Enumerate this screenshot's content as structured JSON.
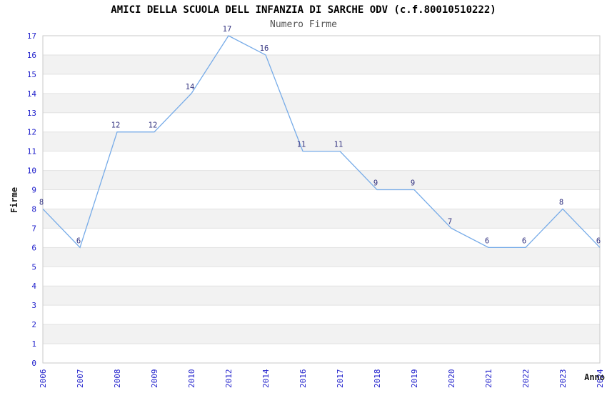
{
  "title": "AMICI DELLA SCUOLA DELL INFANZIA DI SARCHE ODV (c.f.80010510222)",
  "subtitle": "Numero Firme",
  "chart_data": {
    "type": "line",
    "categories": [
      "2006",
      "2007",
      "2008",
      "2009",
      "2010",
      "2012",
      "2014",
      "2016",
      "2017",
      "2018",
      "2019",
      "2020",
      "2021",
      "2022",
      "2023",
      "2024"
    ],
    "values": [
      8,
      6,
      12,
      12,
      14,
      17,
      16,
      11,
      11,
      9,
      9,
      7,
      6,
      6,
      8,
      6
    ],
    "title": "AMICI DELLA SCUOLA DELL INFANZIA DI SARCHE ODV (c.f.80010510222)",
    "subtitle": "Numero Firme",
    "xlabel": "Anno",
    "ylabel": "Firme",
    "ylim": [
      0,
      17
    ],
    "ytick_step": 1,
    "grid": "horizontal",
    "legend": "none",
    "colors": {
      "line": "#76abe8",
      "point_label": "#333380",
      "tick_label": "#2222cc",
      "band_fill": "#f2f2f2",
      "gridline": "#e2e2e2",
      "plot_border": "#c9c9c9",
      "title": "#000000",
      "subtitle": "#555555",
      "axis_title": "#1a1a1a",
      "background": "#ffffff"
    }
  }
}
